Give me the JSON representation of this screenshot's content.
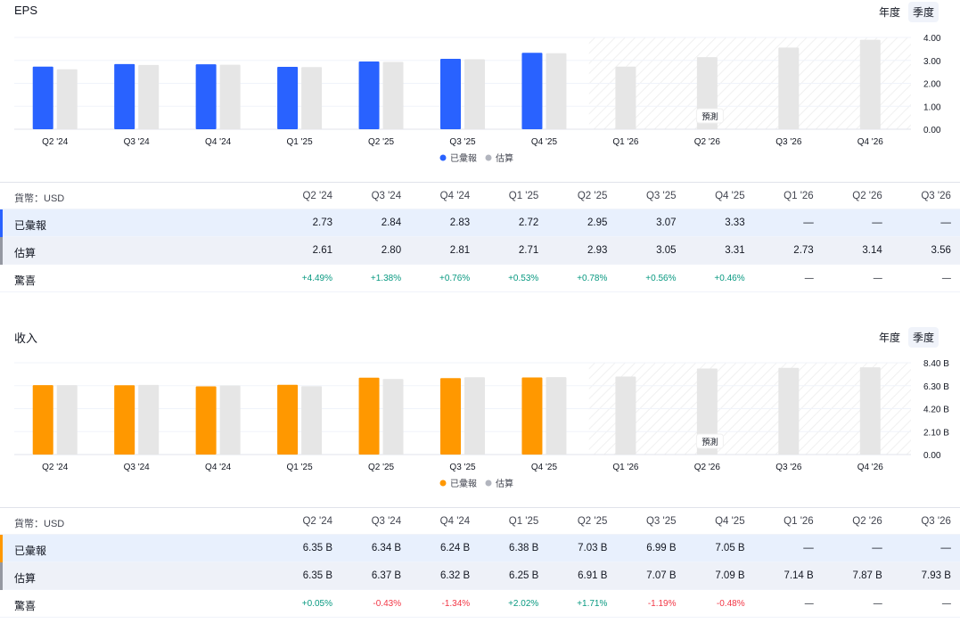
{
  "eps": {
    "title": "EPS",
    "toggle": {
      "annual": "年度",
      "quarterly": "季度"
    },
    "y_ticks": [
      "4.00",
      "3.00",
      "2.00",
      "1.00",
      "0.00"
    ],
    "forecast_label": "預測",
    "legend": {
      "reported": "已彙報",
      "estimate": "估算"
    },
    "colors": {
      "reported": "#2962ff",
      "estimate": "#e6e6e6",
      "reported_mark": "#2962ff",
      "estimate_mark": "#9598a1"
    },
    "chart_data": {
      "type": "bar",
      "categories": [
        "Q2 '24",
        "Q3 '24",
        "Q4 '24",
        "Q1 '25",
        "Q2 '25",
        "Q3 '25",
        "Q4 '25",
        "Q1 '26",
        "Q2 '26",
        "Q3 '26",
        "Q4 '26"
      ],
      "series": [
        {
          "name": "已彙報",
          "values": [
            2.73,
            2.84,
            2.83,
            2.72,
            2.95,
            3.07,
            3.33,
            null,
            null,
            null,
            null
          ]
        },
        {
          "name": "估算",
          "values": [
            2.61,
            2.8,
            2.81,
            2.71,
            2.93,
            3.05,
            3.31,
            2.73,
            3.14,
            3.56,
            3.9
          ]
        }
      ],
      "ylim": [
        0,
        4
      ]
    },
    "table": {
      "currency_label": "貨幣：USD",
      "columns": [
        "Q2 '24",
        "Q3 '24",
        "Q4 '24",
        "Q1 '25",
        "Q2 '25",
        "Q3 '25",
        "Q4 '25",
        "Q1 '26",
        "Q2 '26",
        "Q3 '26"
      ],
      "rows": [
        {
          "label": "已彙報",
          "cells": [
            "2.73",
            "2.84",
            "2.83",
            "2.72",
            "2.95",
            "3.07",
            "3.33",
            "—",
            "—",
            "—"
          ]
        },
        {
          "label": "估算",
          "cells": [
            "2.61",
            "2.80",
            "2.81",
            "2.71",
            "2.93",
            "3.05",
            "3.31",
            "2.73",
            "3.14",
            "3.56"
          ]
        },
        {
          "label": "驚喜",
          "cells": [
            "+4.49%",
            "+1.38%",
            "+0.76%",
            "+0.53%",
            "+0.78%",
            "+0.56%",
            "+0.46%",
            "—",
            "—",
            "—"
          ]
        }
      ]
    }
  },
  "revenue": {
    "title": "收入",
    "toggle": {
      "annual": "年度",
      "quarterly": "季度"
    },
    "y_ticks": [
      "8.40 B",
      "6.30 B",
      "4.20 B",
      "2.10 B",
      "0.00"
    ],
    "forecast_label": "預測",
    "legend": {
      "reported": "已彙報",
      "estimate": "估算"
    },
    "colors": {
      "reported": "#ff9800",
      "estimate": "#e6e6e6",
      "reported_mark": "#ff9800",
      "estimate_mark": "#9598a1"
    },
    "chart_data": {
      "type": "bar",
      "categories": [
        "Q2 '24",
        "Q3 '24",
        "Q4 '24",
        "Q1 '25",
        "Q2 '25",
        "Q3 '25",
        "Q4 '25",
        "Q1 '26",
        "Q2 '26",
        "Q3 '26",
        "Q4 '26"
      ],
      "series": [
        {
          "name": "已彙報",
          "values": [
            6.35,
            6.34,
            6.24,
            6.38,
            7.03,
            6.99,
            7.05,
            null,
            null,
            null,
            null
          ]
        },
        {
          "name": "估算",
          "values": [
            6.35,
            6.37,
            6.32,
            6.25,
            6.91,
            7.07,
            7.09,
            7.14,
            7.87,
            7.93,
            7.98
          ]
        }
      ],
      "ylim": [
        0,
        8.4
      ]
    },
    "table": {
      "currency_label": "貨幣：USD",
      "columns": [
        "Q2 '24",
        "Q3 '24",
        "Q4 '24",
        "Q1 '25",
        "Q2 '25",
        "Q3 '25",
        "Q4 '25",
        "Q1 '26",
        "Q2 '26",
        "Q3 '26"
      ],
      "rows": [
        {
          "label": "已彙報",
          "cells": [
            "6.35 B",
            "6.34 B",
            "6.24 B",
            "6.38 B",
            "7.03 B",
            "6.99 B",
            "7.05 B",
            "—",
            "—",
            "—"
          ]
        },
        {
          "label": "估算",
          "cells": [
            "6.35 B",
            "6.37 B",
            "6.32 B",
            "6.25 B",
            "6.91 B",
            "7.07 B",
            "7.09 B",
            "7.14 B",
            "7.87 B",
            "7.93 B"
          ]
        },
        {
          "label": "驚喜",
          "cells": [
            "+0.05%",
            "-0.43%",
            "-1.34%",
            "+2.02%",
            "+1.71%",
            "-1.19%",
            "-0.48%",
            "—",
            "—",
            "—"
          ]
        }
      ]
    }
  }
}
